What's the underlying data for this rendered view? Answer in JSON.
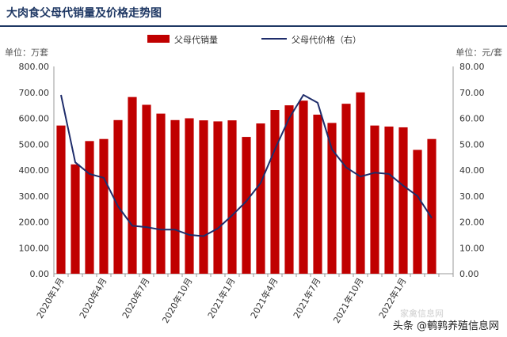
{
  "title": "大肉食父母代销量及价格走势图",
  "chart_data": {
    "type": "bar+line",
    "legend": {
      "placement": "top-center"
    },
    "categories": [
      "2020年1月",
      "2020年2月",
      "2020年3月",
      "2020年4月",
      "2020年5月",
      "2020年6月",
      "2020年7月",
      "2020年8月",
      "2020年9月",
      "2020年10月",
      "2020年11月",
      "2020年12月",
      "2021年1月",
      "2021年2月",
      "2021年3月",
      "2021年4月",
      "2021年5月",
      "2021年6月",
      "2021年7月",
      "2021年8月",
      "2021年9月",
      "2021年10月",
      "2021年11月",
      "2021年12月",
      "2022年1月",
      "2022年2月",
      "2022年3月",
      "2022年4月"
    ],
    "x_tick_labels": [
      "2020年1月",
      "2020年4月",
      "2020年7月",
      "2020年10月",
      "2021年1月",
      "2021年4月",
      "2021年7月",
      "2021年10月",
      "2022年1月"
    ],
    "series": [
      {
        "name": "父母代销量",
        "type": "bar",
        "axis": "left",
        "color": "#c00000",
        "values": [
          572,
          422,
          512,
          520,
          593,
          682,
          652,
          618,
          593,
          600,
          592,
          588,
          592,
          528,
          580,
          632,
          650,
          668,
          614,
          582,
          656,
          700,
          572,
          568,
          565,
          478,
          520,
          0
        ]
      },
      {
        "name": "父母代价格（右）",
        "type": "line",
        "axis": "right",
        "color": "#1f2d6b",
        "values": [
          69,
          43,
          38.5,
          37,
          26,
          18.5,
          18,
          17,
          17,
          15,
          14.5,
          17.5,
          22.5,
          28,
          35,
          48,
          60,
          69,
          66,
          48,
          41,
          37.5,
          39,
          38.5,
          34,
          30,
          21.5,
          null
        ]
      }
    ],
    "y_left": {
      "unit": "单位：万套",
      "min": 0,
      "max": 800,
      "step": 100,
      "ticks": [
        "0.00",
        "100.00",
        "200.00",
        "300.00",
        "400.00",
        "500.00",
        "600.00",
        "700.00",
        "800.00"
      ]
    },
    "y_right": {
      "unit": "单位：元/套",
      "min": 0,
      "max": 80,
      "step": 10,
      "ticks": [
        "0.00",
        "10.00",
        "20.00",
        "30.00",
        "40.00",
        "50.00",
        "60.00",
        "70.00",
        "80.00"
      ]
    },
    "grid": false
  },
  "watermark": "头条 @鹌鹑养殖信息网",
  "watermark_faint": "家禽信息网"
}
